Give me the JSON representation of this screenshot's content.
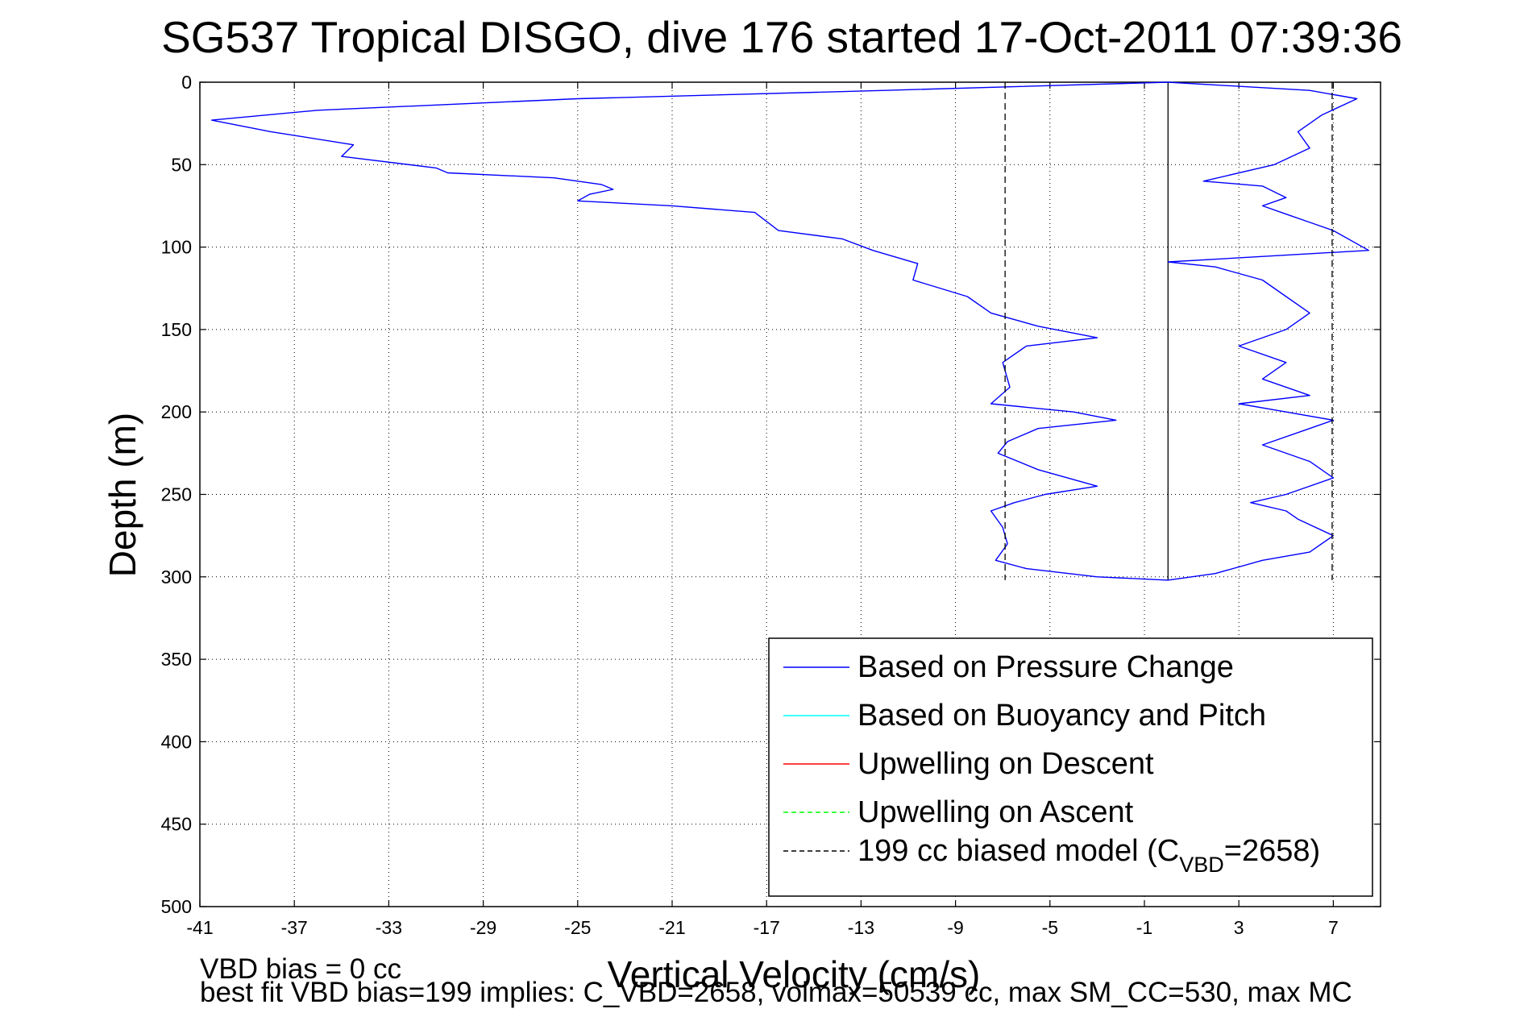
{
  "chart_data": {
    "type": "line",
    "title": "SG537 Tropical DISGO, dive 176 started 17-Oct-2011 07:39:36",
    "xlabel": "Vertical Velocity (cm/s)",
    "ylabel": "Depth (m)",
    "xlim": [
      -41,
      9
    ],
    "ylim": [
      0,
      500
    ],
    "y_reversed": true,
    "grid": true,
    "x_ticks": [
      -41,
      -37,
      -33,
      -29,
      -25,
      -21,
      -17,
      -13,
      -9,
      -5,
      -1,
      3,
      7
    ],
    "y_ticks": [
      0,
      50,
      100,
      150,
      200,
      250,
      300,
      350,
      400,
      450,
      500
    ],
    "legend_placement": "lower-right",
    "series": [
      {
        "name": "Based on Pressure Change",
        "color": "#0000ff",
        "style": "solid",
        "descent": {
          "x": [
            0,
            -12,
            -25,
            -36,
            -40.5,
            -38,
            -34.5,
            -35,
            -31,
            -30.5,
            -26,
            -24,
            -23.5,
            -24.5,
            -25,
            -21,
            -17.5,
            -16.5,
            -13.8,
            -12.5,
            -10.6,
            -10.8,
            -8.5,
            -7.5,
            -5.5,
            -3.0,
            -6,
            -7.0,
            -6.7,
            -7.5,
            -4.0,
            -2.2,
            -5.5,
            -6.8,
            -7.2,
            -5.5,
            -3.0,
            -5.2,
            -6.5,
            -7.5,
            -7.0,
            -6.8,
            -7.3,
            -6.0,
            -3.0,
            0
          ],
          "y": [
            0,
            5,
            10,
            17,
            23,
            30,
            38,
            45,
            52,
            55,
            58,
            62,
            65,
            68,
            72,
            75,
            79,
            90,
            95,
            102,
            110,
            120,
            130,
            140,
            148,
            155,
            160,
            170,
            185,
            195,
            200,
            205,
            210,
            218,
            225,
            235,
            245,
            250,
            255,
            260,
            270,
            280,
            290,
            295,
            300,
            302
          ]
        },
        "ascent": {
          "x": [
            0,
            6,
            8,
            6.5,
            5.5,
            6.0,
            4.5,
            1.5,
            4,
            5,
            4,
            5,
            6,
            7,
            8.5,
            0,
            2,
            4,
            5,
            6,
            5,
            4,
            3,
            5,
            4,
            6,
            3,
            5,
            7,
            6,
            4,
            6,
            7,
            5,
            3.5,
            5,
            5.5,
            7,
            6,
            4,
            2,
            0
          ],
          "y": [
            0,
            5,
            10,
            20,
            30,
            40,
            50,
            60,
            63,
            70,
            75,
            80,
            85,
            90,
            102,
            109,
            112,
            120,
            130,
            140,
            150,
            155,
            160,
            170,
            180,
            190,
            195,
            200,
            205,
            210,
            220,
            230,
            240,
            250,
            255,
            260,
            265,
            275,
            285,
            290,
            298,
            302
          ]
        }
      },
      {
        "name": "Based on Buoyancy and Pitch",
        "color": "#00ffff",
        "style": "solid",
        "x": [],
        "y": []
      },
      {
        "name": "Upwelling on Descent",
        "color": "#ff0000",
        "style": "solid",
        "x": [],
        "y": []
      },
      {
        "name": "Upwelling on Ascent",
        "color": "#00ff00",
        "style": "dashed",
        "x": [],
        "y": []
      },
      {
        "name": "199 cc biased model (C",
        "name_sub": "VBD",
        "name_tail": "=2658)",
        "color": "#000000",
        "style": "dashed",
        "vlines": [
          -6.9,
          6.95
        ],
        "y_range": [
          0,
          302
        ]
      }
    ],
    "reference_line": {
      "x": 0,
      "y_range": [
        0,
        302
      ],
      "color": "#000000",
      "style": "solid"
    }
  },
  "footer": {
    "line1": "VBD bias = 0 cc",
    "line2": "best fit VBD bias=199 implies: C_VBD=2658, volmax=50539 cc, max SM_CC=530, max MC"
  }
}
